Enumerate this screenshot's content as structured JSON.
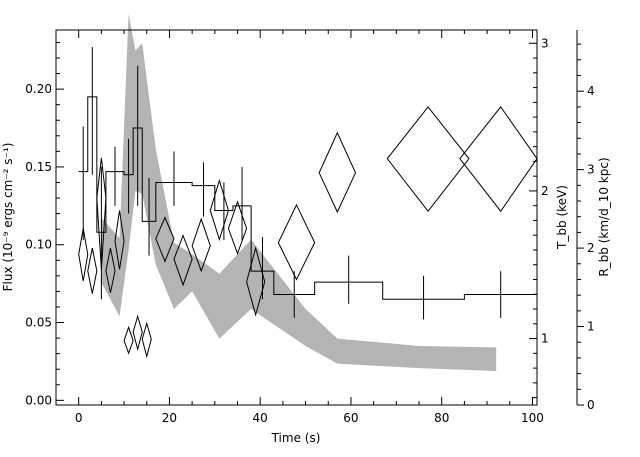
{
  "chart_data": {
    "type": "line",
    "title": "",
    "xlabel": "Time (s)",
    "ylabel_left": "Flux (10⁻⁹ ergs cm⁻² s⁻¹)",
    "ylabel_right_inner": "T_bb (keV)",
    "ylabel_right_outer": "R_bb (km/d_10 kpc)",
    "xlim": [
      -5,
      101
    ],
    "ylim_left": [
      -0.003,
      0.238
    ],
    "ylim_right_inner": [
      0.55,
      3.09
    ],
    "ylim_right_outer": [
      0,
      4.78
    ],
    "x_ticks": [
      "0",
      "20",
      "40",
      "60",
      "80",
      "100"
    ],
    "y_ticks_left": [
      "0.00",
      "0.05",
      "0.10",
      "0.15",
      "0.20"
    ],
    "y_ticks_right_inner": [
      "1",
      "2",
      "3"
    ],
    "y_ticks_right_outer": [
      "0",
      "1",
      "2",
      "3",
      "4"
    ],
    "grid": false,
    "series": [
      {
        "style": "histogram",
        "color": "#000000",
        "bins": [
          {
            "x0": 0,
            "x1": 2,
            "flux": 0.147,
            "err_lo": 0.103,
            "err_hi": 0.176
          },
          {
            "x0": 2,
            "x1": 4,
            "flux": 0.195,
            "err_lo": 0.145,
            "err_hi": 0.227
          },
          {
            "x0": 4,
            "x1": 6,
            "flux": 0.108,
            "err_lo": 0.065,
            "err_hi": 0.15
          },
          {
            "x0": 6,
            "x1": 10,
            "flux": 0.147,
            "err_lo": 0.125,
            "err_hi": 0.163
          },
          {
            "x0": 10,
            "x1": 12,
            "flux": 0.145,
            "err_lo": 0.12,
            "err_hi": 0.168
          },
          {
            "x0": 12,
            "x1": 14,
            "flux": 0.175,
            "err_lo": 0.125,
            "err_hi": 0.215
          },
          {
            "x0": 14,
            "x1": 17,
            "flux": 0.115,
            "err_lo": 0.093,
            "err_hi": 0.143
          },
          {
            "x0": 17,
            "x1": 25,
            "flux": 0.14,
            "err_lo": 0.125,
            "err_hi": 0.16
          },
          {
            "x0": 25,
            "x1": 30,
            "flux": 0.138,
            "err_lo": 0.118,
            "err_hi": 0.153
          },
          {
            "x0": 30,
            "x1": 34,
            "flux": 0.122,
            "err_lo": 0.103,
            "err_hi": 0.14
          },
          {
            "x0": 34,
            "x1": 38,
            "flux": 0.125,
            "err_lo": 0.103,
            "err_hi": 0.15
          },
          {
            "x0": 38,
            "x1": 43,
            "flux": 0.083,
            "err_lo": 0.065,
            "err_hi": 0.105
          },
          {
            "x0": 43,
            "x1": 52,
            "flux": 0.068,
            "err_lo": 0.053,
            "err_hi": 0.083
          },
          {
            "x0": 52,
            "x1": 67,
            "flux": 0.076,
            "err_lo": 0.062,
            "err_hi": 0.093
          },
          {
            "x0": 67,
            "x1": 85,
            "flux": 0.065,
            "err_lo": 0.052,
            "err_hi": 0.08
          },
          {
            "x0": 85,
            "x1": 101,
            "flux": 0.068,
            "err_lo": 0.053,
            "err_hi": 0.083
          }
        ]
      },
      {
        "style": "diamonds",
        "axis": "right_outer",
        "color": "#000000",
        "points": [
          {
            "x": 1,
            "x_lo": 0,
            "x_hi": 2,
            "y": 1.92,
            "y_lo": 1.58,
            "y_hi": 2.25
          },
          {
            "x": 3,
            "x_lo": 2,
            "x_hi": 4,
            "y": 1.71,
            "y_lo": 1.42,
            "y_hi": 2.0
          },
          {
            "x": 5,
            "x_lo": 4,
            "x_hi": 6,
            "y": 2.64,
            "y_lo": 1.73,
            "y_hi": 3.15
          },
          {
            "x": 7,
            "x_lo": 6,
            "x_hi": 8,
            "y": 1.71,
            "y_lo": 1.43,
            "y_hi": 2.0
          },
          {
            "x": 9,
            "x_lo": 8,
            "x_hi": 10,
            "y": 2.09,
            "y_lo": 1.73,
            "y_hi": 2.48
          },
          {
            "x": 11,
            "x_lo": 10,
            "x_hi": 12,
            "y": 0.82,
            "y_lo": 0.66,
            "y_hi": 0.99
          },
          {
            "x": 13,
            "x_lo": 12,
            "x_hi": 14,
            "y": 0.93,
            "y_lo": 0.71,
            "y_hi": 1.13
          },
          {
            "x": 15,
            "x_lo": 14,
            "x_hi": 16,
            "y": 0.84,
            "y_lo": 0.62,
            "y_hi": 1.04
          },
          {
            "x": 19,
            "x_lo": 17,
            "x_hi": 21,
            "y": 2.12,
            "y_lo": 1.83,
            "y_hi": 2.39
          },
          {
            "x": 23,
            "x_lo": 21,
            "x_hi": 25,
            "y": 1.86,
            "y_lo": 1.53,
            "y_hi": 2.16
          },
          {
            "x": 27,
            "x_lo": 25,
            "x_hi": 29,
            "y": 2.03,
            "y_lo": 1.71,
            "y_hi": 2.37
          },
          {
            "x": 31,
            "x_lo": 29,
            "x_hi": 33,
            "y": 2.48,
            "y_lo": 2.11,
            "y_hi": 2.86
          },
          {
            "x": 35,
            "x_lo": 33,
            "x_hi": 37,
            "y": 2.25,
            "y_lo": 1.93,
            "y_hi": 2.59
          },
          {
            "x": 39,
            "x_lo": 37,
            "x_hi": 41,
            "y": 1.57,
            "y_lo": 1.15,
            "y_hi": 2.0
          },
          {
            "x": 48,
            "x_lo": 44,
            "x_hi": 52,
            "y": 2.07,
            "y_lo": 1.6,
            "y_hi": 2.55
          },
          {
            "x": 57,
            "x_lo": 53,
            "x_hi": 61,
            "y": 2.96,
            "y_lo": 2.46,
            "y_hi": 3.47
          },
          {
            "x": 77,
            "x_lo": 68,
            "x_hi": 86,
            "y": 3.14,
            "y_lo": 2.47,
            "y_hi": 3.8
          },
          {
            "x": 93,
            "x_lo": 84,
            "x_hi": 101,
            "y": 3.14,
            "y_lo": 2.47,
            "y_hi": 3.8
          }
        ]
      },
      {
        "style": "band",
        "axis": "right_inner",
        "color": "#b4b4b4",
        "points": [
          {
            "x": 5,
            "lo": 1.38,
            "hi": 1.82
          },
          {
            "x": 9,
            "lo": 1.15,
            "hi": 1.68
          },
          {
            "x": 11,
            "lo": 1.6,
            "hi": 3.2
          },
          {
            "x": 12.5,
            "lo": 2.0,
            "hi": 2.95
          },
          {
            "x": 14,
            "lo": 1.98,
            "hi": 3.0
          },
          {
            "x": 17,
            "lo": 1.5,
            "hi": 2.28
          },
          {
            "x": 21,
            "lo": 1.2,
            "hi": 1.65
          },
          {
            "x": 25,
            "lo": 1.32,
            "hi": 1.57
          },
          {
            "x": 31,
            "lo": 1.0,
            "hi": 1.44
          },
          {
            "x": 38,
            "lo": 1.2,
            "hi": 1.67
          },
          {
            "x": 50,
            "lo": 0.95,
            "hi": 1.2
          },
          {
            "x": 57,
            "lo": 0.83,
            "hi": 1.0
          },
          {
            "x": 75,
            "lo": 0.8,
            "hi": 0.95
          },
          {
            "x": 92,
            "lo": 0.78,
            "hi": 0.94
          }
        ]
      }
    ]
  }
}
